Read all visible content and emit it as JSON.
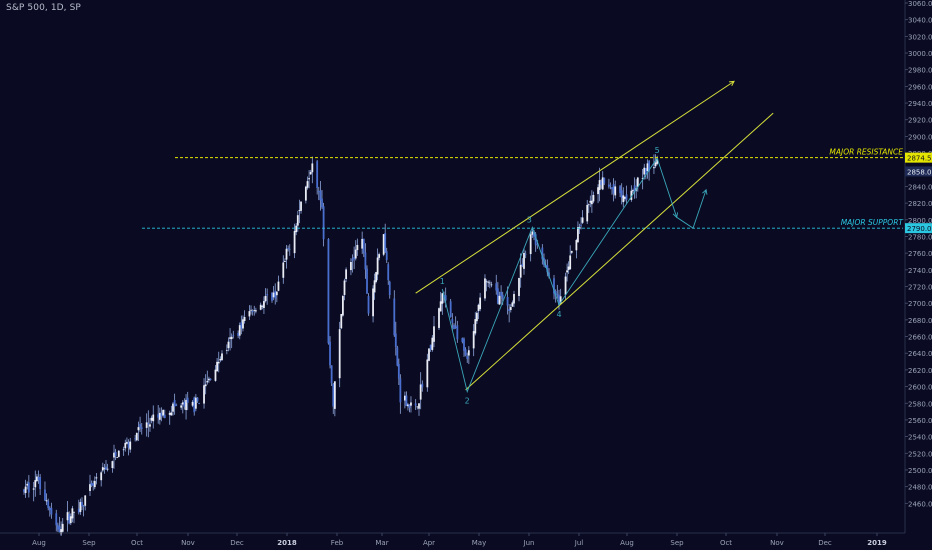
{
  "header": {
    "symbol_title": "S&P 500, 1D, SP"
  },
  "colors": {
    "background": "#0a0b22",
    "candle_up": "#e9ecf5",
    "candle_down": "#4a6fcf",
    "wick": "#8fa6dc",
    "resistance_line": "#e5e600",
    "support_line": "#2bc6e0",
    "channel_line": "#d6df3a",
    "wave_line": "#3aa6b9",
    "axis_text": "#9aa2b8",
    "tag_dark": "#1e2a55"
  },
  "chart_data": {
    "type": "candlestick",
    "symbol": "S&P 500",
    "interval": "1D",
    "exchange": "SP",
    "y_axis": {
      "position": "right",
      "ylim": [
        2440,
        3060
      ],
      "ticks": [
        3060,
        3040,
        3020,
        3000,
        2980,
        2960,
        2940,
        2920,
        2900,
        2880,
        2858,
        2840,
        2820,
        2800,
        2780,
        2760,
        2740,
        2720,
        2700,
        2680,
        2660,
        2640,
        2620,
        2600,
        2580,
        2560,
        2540,
        2520,
        2500,
        2480,
        2460
      ],
      "tick_labels": [
        "3060.00",
        "3040.00",
        "3020.00",
        "3000.00",
        "2980.00",
        "2960.00",
        "2940.00",
        "2920.00",
        "2900.00",
        "2880.00",
        "2858.00",
        "2840.00",
        "2820.00",
        "2800.00",
        "2780.00",
        "2760.00",
        "2740.00",
        "2720.00",
        "2700.00",
        "2680.00",
        "2660.00",
        "2640.00",
        "2620.00",
        "2600.00",
        "2580.00",
        "2560.00",
        "2540.00",
        "2520.00",
        "2500.00",
        "2480.00",
        "2460.00"
      ]
    },
    "x_axis": {
      "labels": [
        "Aug",
        "Sep",
        "Oct",
        "Nov",
        "Dec",
        "2018",
        "Feb",
        "Mar",
        "Apr",
        "May",
        "Jun",
        "Jul",
        "Aug",
        "Sep",
        "Oct",
        "Nov",
        "Dec",
        "2019"
      ],
      "bold_labels": [
        "2018",
        "2019"
      ]
    },
    "price_path": [
      {
        "date": "2017-08-01",
        "price": 2475
      },
      {
        "date": "2017-08-10",
        "price": 2490
      },
      {
        "date": "2017-08-21",
        "price": 2428
      },
      {
        "date": "2017-09-05",
        "price": 2458
      },
      {
        "date": "2017-09-20",
        "price": 2500
      },
      {
        "date": "2017-10-10",
        "price": 2545
      },
      {
        "date": "2017-10-31",
        "price": 2575
      },
      {
        "date": "2017-11-15",
        "price": 2578
      },
      {
        "date": "2017-11-30",
        "price": 2635
      },
      {
        "date": "2017-12-18",
        "price": 2690
      },
      {
        "date": "2018-01-03",
        "price": 2710
      },
      {
        "date": "2018-01-15",
        "price": 2790
      },
      {
        "date": "2018-01-26",
        "price": 2872
      },
      {
        "date": "2018-02-01",
        "price": 2820
      },
      {
        "date": "2018-02-05",
        "price": 2650
      },
      {
        "date": "2018-02-08",
        "price": 2581
      },
      {
        "date": "2018-02-15",
        "price": 2730
      },
      {
        "date": "2018-02-26",
        "price": 2780
      },
      {
        "date": "2018-03-02",
        "price": 2690
      },
      {
        "date": "2018-03-12",
        "price": 2786
      },
      {
        "date": "2018-03-23",
        "price": 2590
      },
      {
        "date": "2018-04-02",
        "price": 2570
      },
      {
        "date": "2018-04-18",
        "price": 2710
      },
      {
        "date": "2018-05-03",
        "price": 2630
      },
      {
        "date": "2018-05-14",
        "price": 2730
      },
      {
        "date": "2018-05-29",
        "price": 2690
      },
      {
        "date": "2018-06-12",
        "price": 2786
      },
      {
        "date": "2018-06-28",
        "price": 2700
      },
      {
        "date": "2018-07-10",
        "price": 2790
      },
      {
        "date": "2018-07-25",
        "price": 2845
      },
      {
        "date": "2018-08-10",
        "price": 2830
      },
      {
        "date": "2018-08-29",
        "price": 2874
      }
    ],
    "annotations": {
      "resistance": {
        "label": "MAJOR RESISTANCE",
        "price": 2874.56,
        "price_label": "2874.56"
      },
      "support": {
        "label": "MAJOR SUPPORT",
        "price": 2790,
        "price_label": "2790.00"
      },
      "current_price_tag": "2858.00",
      "channel_upper": [
        {
          "date": "2018-04-02",
          "price": 2712
        },
        {
          "date": "2018-10-15",
          "price": 2966
        }
      ],
      "channel_lower": [
        {
          "date": "2018-05-02",
          "price": 2596
        },
        {
          "date": "2018-11-08",
          "price": 2928
        }
      ],
      "waves": [
        {
          "label": "1",
          "date": "2018-04-18",
          "price": 2717
        },
        {
          "label": "2",
          "date": "2018-05-03",
          "price": 2594
        },
        {
          "label": "3",
          "date": "2018-06-12",
          "price": 2791
        },
        {
          "label": "4",
          "date": "2018-06-28",
          "price": 2698
        },
        {
          "label": "5",
          "date": "2018-08-29",
          "price": 2874
        }
      ],
      "projection": [
        {
          "date": "2018-08-29",
          "price": 2874
        },
        {
          "date": "2018-09-10",
          "price": 2803
        },
        {
          "date": "2018-09-20",
          "price": 2790
        },
        {
          "date": "2018-09-28",
          "price": 2836
        }
      ]
    }
  }
}
